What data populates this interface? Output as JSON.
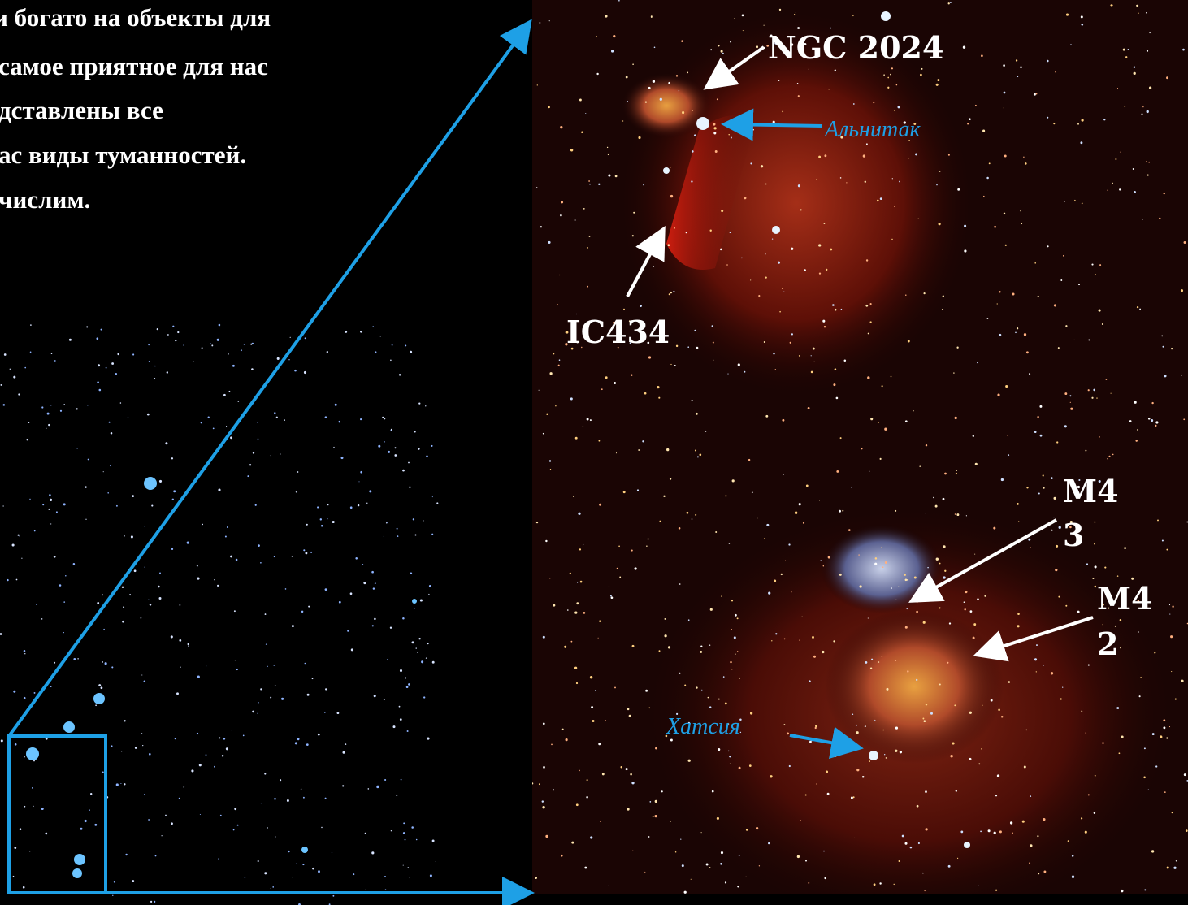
{
  "body_text": {
    "lines": [
      "и богато на объекты для",
      "самое приятное для нас",
      "дставлены все",
      "ас виды туманностей.",
      "числим."
    ]
  },
  "labels": {
    "ngc2024": "NGC 2024",
    "alnitak": "Альнитак",
    "ic434": "IC434",
    "m43": [
      "M4",
      "3"
    ],
    "m42": [
      "M4",
      "2"
    ],
    "hatsya": "Хатсия"
  }
}
